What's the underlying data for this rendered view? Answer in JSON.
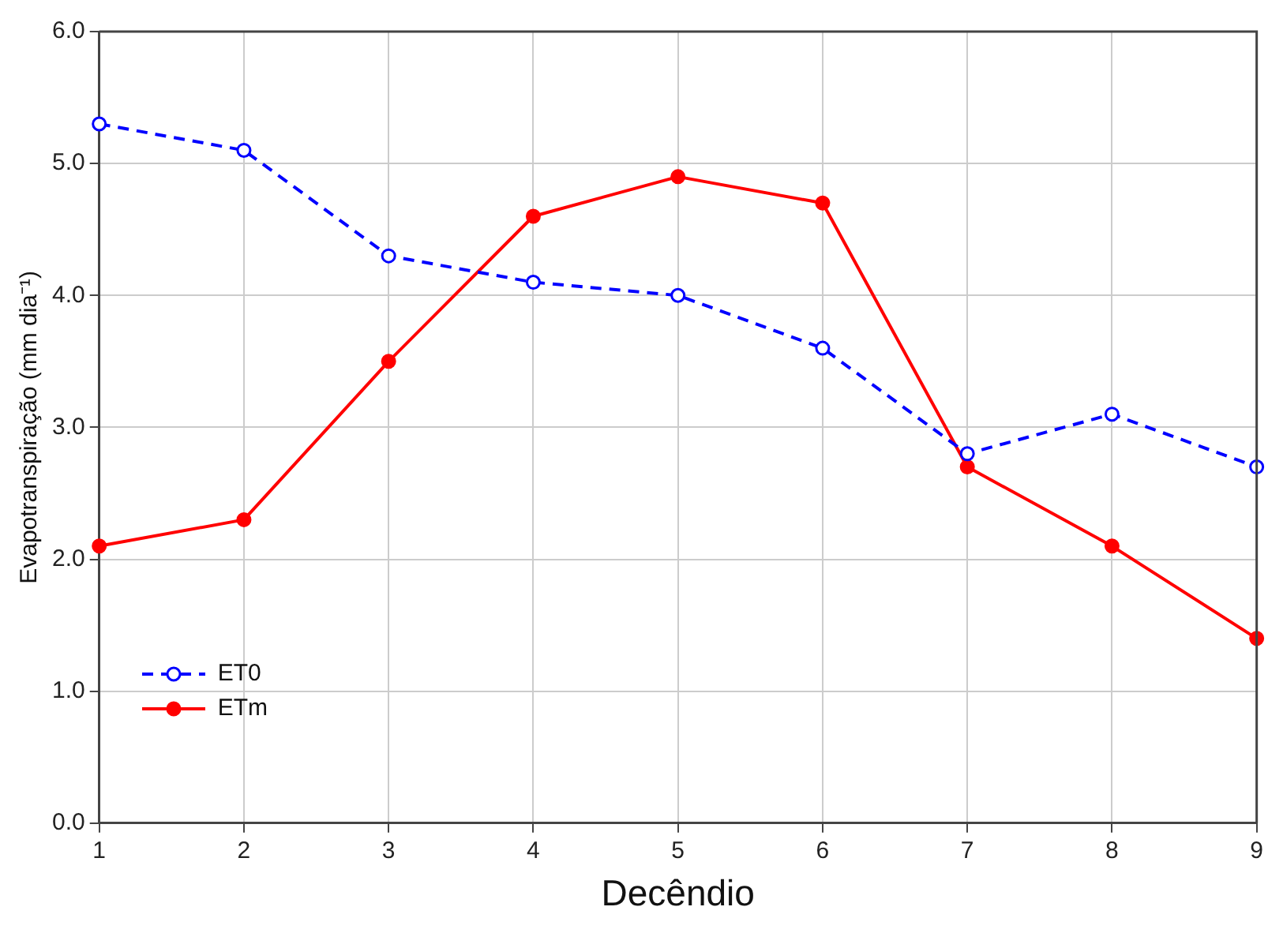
{
  "chart_data": {
    "type": "line",
    "xlabel": "Decêndio",
    "ylabel": "Evapotranspiração (mm dia⁻¹)",
    "x": [
      1,
      2,
      3,
      4,
      5,
      6,
      7,
      8,
      9
    ],
    "series": [
      {
        "name": "ET0",
        "color": "#0000ff",
        "line_style": "dashed",
        "marker": "circle",
        "values": [
          5.3,
          5.1,
          4.3,
          4.1,
          4.0,
          3.6,
          2.8,
          3.1,
          2.7
        ]
      },
      {
        "name": "ETm",
        "color": "#ff0000",
        "line_style": "solid",
        "marker": "circle",
        "values": [
          2.1,
          2.3,
          3.5,
          4.6,
          4.9,
          4.7,
          2.7,
          2.1,
          1.4
        ]
      }
    ],
    "xlim": [
      1,
      9
    ],
    "xticks": [
      1,
      2,
      3,
      4,
      5,
      6,
      7,
      8,
      9
    ],
    "ylim": [
      0,
      6
    ],
    "yticks": [
      {
        "value": 0,
        "label": "0.0"
      },
      {
        "value": 1,
        "label": "1.0"
      },
      {
        "value": 2,
        "label": "2.0"
      },
      {
        "value": 3,
        "label": "3.0"
      },
      {
        "value": 4,
        "label": "4.0"
      },
      {
        "value": 5,
        "label": "5.0"
      },
      {
        "value": 6,
        "label": "6.0"
      }
    ],
    "grid": true,
    "legend": "bottom left"
  }
}
